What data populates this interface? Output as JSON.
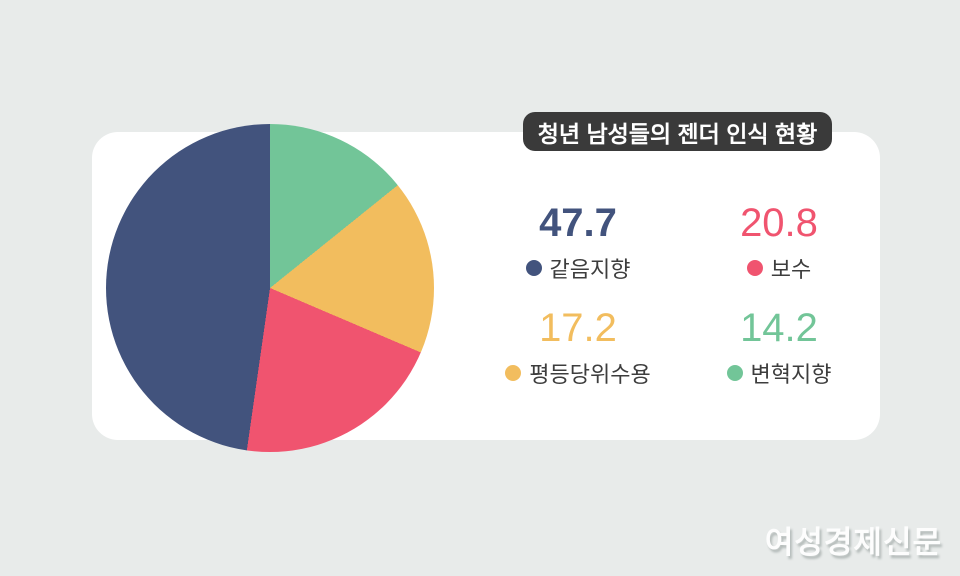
{
  "header": {
    "title": "청년 남성들의 젠더 인식 현황"
  },
  "chart_data": {
    "type": "pie",
    "title": "청년 남성들의 젠더 인식 현황",
    "segments": [
      {
        "label": "같음지향",
        "value": 47.7,
        "color": "#42537d",
        "emphasized": true
      },
      {
        "label": "보수",
        "value": 20.8,
        "color": "#f0546f",
        "emphasized": false
      },
      {
        "label": "평등당위수용",
        "value": 17.2,
        "color": "#f2bd5e",
        "emphasized": false
      },
      {
        "label": "변혁지향",
        "value": 14.2,
        "color": "#72c598",
        "emphasized": false
      }
    ],
    "layout": {
      "start_angle": "top",
      "direction": "clockwise-in-reverse-listed-order",
      "legend_position": "right-grid-2x2",
      "grid": false
    }
  },
  "theme": {
    "page_bg": "#e8ebea",
    "card_bg": "#ffffff",
    "badge_bg": "#3a3a3a",
    "badge_text": "#ffffff",
    "label_text": "#3d3d3d"
  },
  "footer": {
    "watermark": "여성경제신문"
  }
}
